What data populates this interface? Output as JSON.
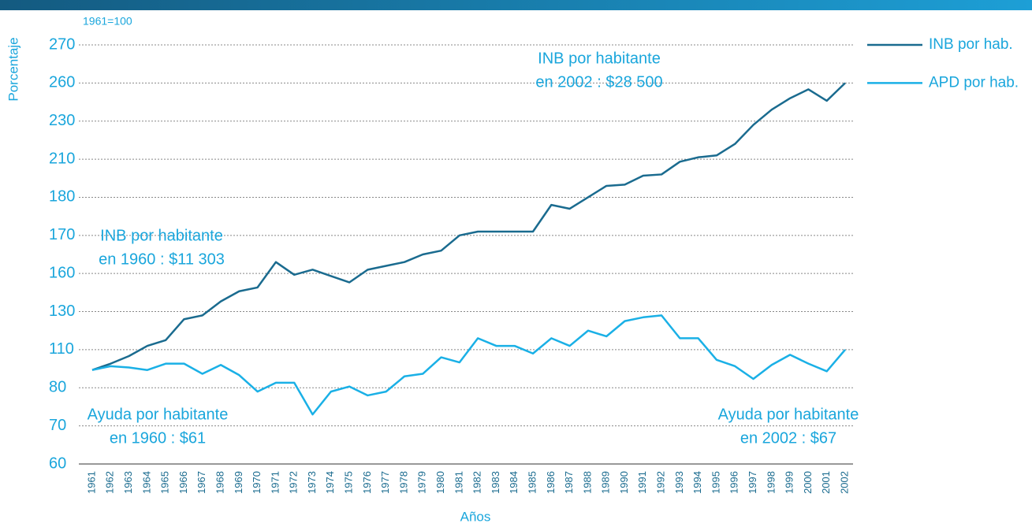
{
  "chart_data": {
    "type": "line",
    "subtitle": "1961=100",
    "y_label": "Porcentaje",
    "x_label": "Años",
    "categories": [
      "1961",
      "1962",
      "1963",
      "1964",
      "1965",
      "1966",
      "1967",
      "1968",
      "1969",
      "1970",
      "1971",
      "1972",
      "1973",
      "1974",
      "1975",
      "1976",
      "1977",
      "1978",
      "1979",
      "1980",
      "1981",
      "1982",
      "1983",
      "1984",
      "1985",
      "1986",
      "1987",
      "1988",
      "1989",
      "1990",
      "1991",
      "1992",
      "1993",
      "1994",
      "1995",
      "1996",
      "1997",
      "1998",
      "1999",
      "2000",
      "2001",
      "2002"
    ],
    "series": [
      {
        "name": "INB por hab.",
        "color": "#1a6b8f",
        "values": [
          94,
          99,
          105,
          112,
          115,
          126,
          128,
          138,
          146,
          149,
          163,
          159,
          161,
          158,
          153,
          161,
          162,
          163,
          165,
          166,
          170,
          171,
          171,
          171,
          171,
          178,
          177,
          180,
          189,
          190,
          197,
          198,
          208,
          211,
          212,
          218,
          228,
          239,
          248,
          255,
          246,
          260
        ]
      },
      {
        "name": "APD por hab.",
        "color": "#1ab0e6",
        "values": [
          94,
          97,
          96,
          94,
          99,
          99,
          91,
          98,
          90,
          79,
          84,
          84,
          73,
          79,
          81,
          78,
          79,
          89,
          91,
          104,
          100,
          116,
          112,
          112,
          107,
          116,
          112,
          120,
          117,
          125,
          127,
          128,
          116,
          116,
          102,
          97,
          87,
          98,
          106,
          99,
          93,
          110
        ]
      }
    ],
    "yticks": [
      60,
      70,
      80,
      110,
      130,
      160,
      170,
      180,
      210,
      230,
      260,
      270
    ],
    "ylim": [
      60,
      270
    ],
    "grid": true,
    "annotations": [
      [
        "INB por habitante",
        "en 2002 : $28 500"
      ],
      [
        "INB por habitante",
        "en 1960 : $11 303"
      ],
      [
        "Ayuda por habitante",
        "en 1960 : $61"
      ],
      [
        "Ayuda por habitante",
        "en 2002 : $67"
      ]
    ]
  }
}
